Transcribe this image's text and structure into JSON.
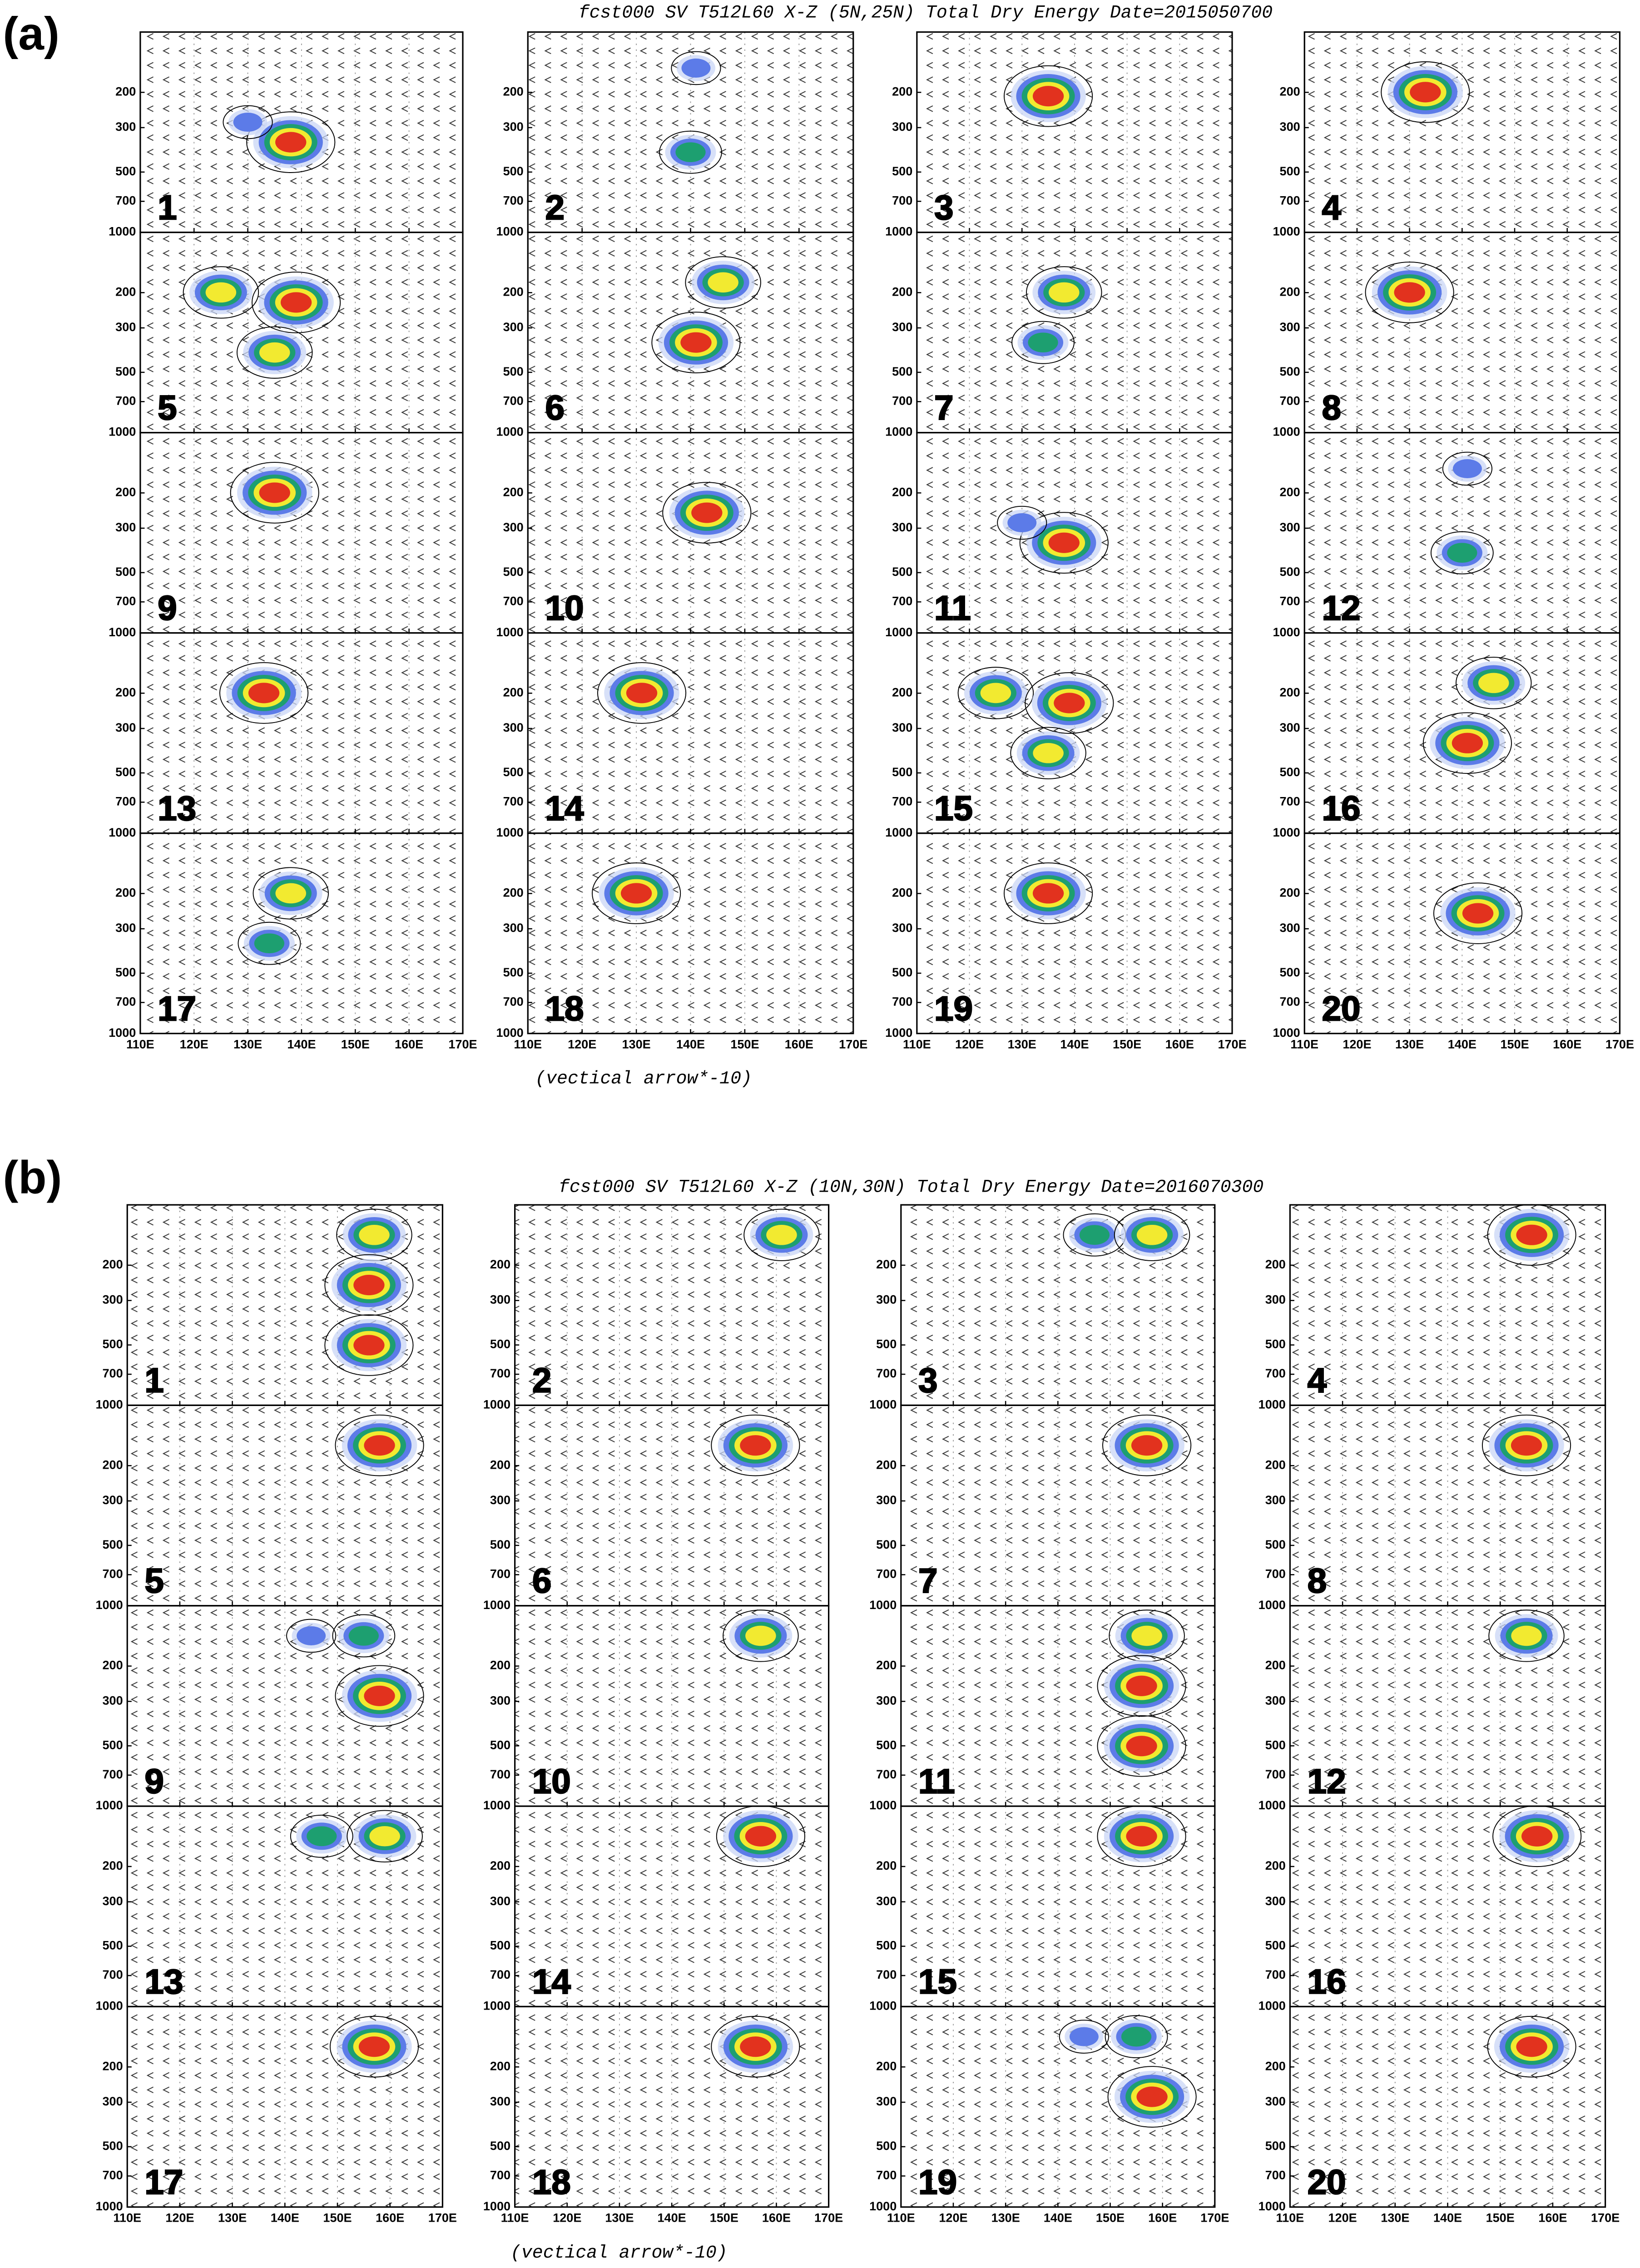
{
  "figures": [
    {
      "label": "(a)",
      "title": "fcst000 SV T512L60 X-Z (5N,25N) Total Dry Energy Date=2015050700",
      "xlabel": "(vectical arrow*-10)",
      "xlim": [
        110,
        170
      ],
      "xticks": [
        {
          "value": 110,
          "label": "110E"
        },
        {
          "value": 120,
          "label": "120E"
        },
        {
          "value": 130,
          "label": "130E"
        },
        {
          "value": 140,
          "label": "140E"
        },
        {
          "value": 150,
          "label": "150E"
        },
        {
          "value": 160,
          "label": "160E"
        },
        {
          "value": 170,
          "label": "170E"
        }
      ],
      "ylim": [
        1000,
        100
      ],
      "ylog": true,
      "yticks": [
        200,
        300,
        500,
        700,
        1000
      ],
      "panels": [
        "1",
        "2",
        "3",
        "4",
        "5",
        "6",
        "7",
        "8",
        "9",
        "10",
        "11",
        "12",
        "13",
        "14",
        "15",
        "16",
        "17",
        "18",
        "19",
        "20"
      ]
    },
    {
      "label": "(b)",
      "title": "fcst000 SV T512L60 X-Z (10N,30N) Total Dry Energy Date=2016070300",
      "xlabel": "(vectical arrow*-10)",
      "xlim": [
        110,
        170
      ],
      "xticks": [
        {
          "value": 110,
          "label": "110E"
        },
        {
          "value": 120,
          "label": "120E"
        },
        {
          "value": 130,
          "label": "130E"
        },
        {
          "value": 140,
          "label": "140E"
        },
        {
          "value": 150,
          "label": "150E"
        },
        {
          "value": 160,
          "label": "160E"
        },
        {
          "value": 170,
          "label": "170E"
        }
      ],
      "ylim": [
        1000,
        100
      ],
      "ylog": true,
      "yticks": [
        200,
        300,
        500,
        700,
        1000
      ],
      "panels": [
        "1",
        "2",
        "3",
        "4",
        "5",
        "6",
        "7",
        "8",
        "9",
        "10",
        "11",
        "12",
        "13",
        "14",
        "15",
        "16",
        "17",
        "18",
        "19",
        "20"
      ]
    }
  ]
}
